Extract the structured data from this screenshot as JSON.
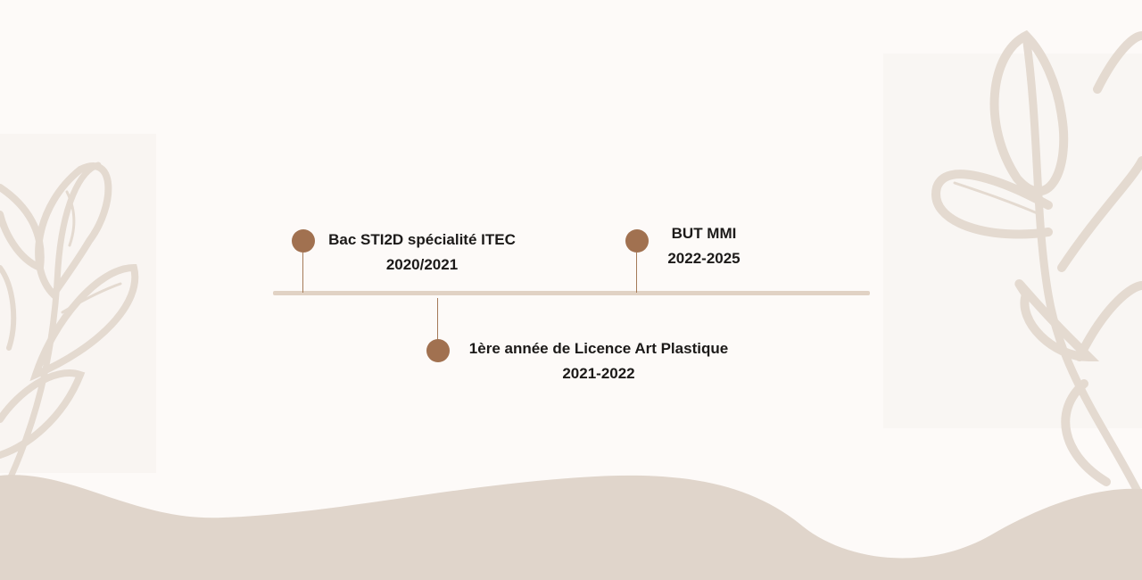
{
  "colors": {
    "background": "#fdfaf8",
    "line": "#e1d2c4",
    "dot": "#a17150",
    "wave": "#e0d5cb",
    "leaf": "#e6ddd3",
    "text": "#1c1a19"
  },
  "timeline": {
    "events": [
      {
        "title": "Bac STI2D spécialité ITEC",
        "years": "2020/2021"
      },
      {
        "title": "1ère année de Licence Art Plastique",
        "years": "2021-2022"
      },
      {
        "title": "BUT MMI",
        "years": "2022-2025"
      }
    ]
  },
  "decorations": {
    "left_leaf": "leaf-outline-icon",
    "right_leaf": "leaf-outline-icon",
    "bottom_wave": "wave-shape"
  }
}
